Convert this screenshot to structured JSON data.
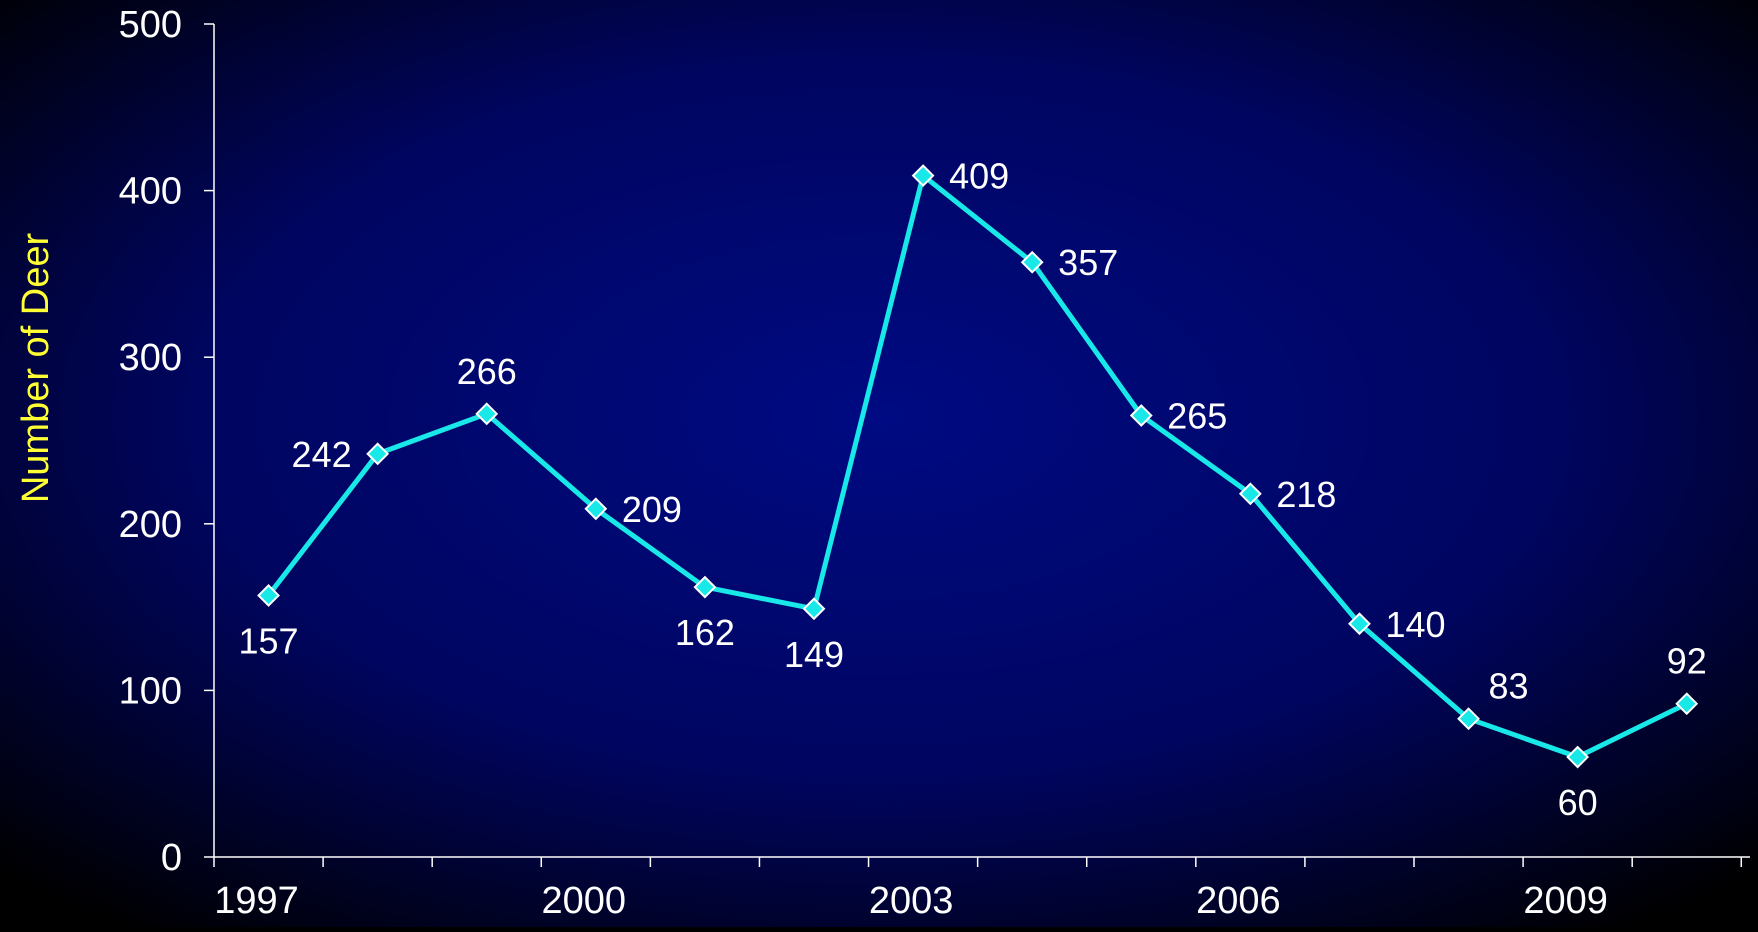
{
  "chart_data": {
    "type": "line",
    "title": "",
    "xlabel": "",
    "ylabel": "Number of Deer",
    "x": [
      1997,
      1998,
      1999,
      2000,
      2001,
      2002,
      2003,
      2004,
      2005,
      2006,
      2007,
      2008,
      2009,
      2010
    ],
    "x_tick_labels": [
      "1997",
      "2000",
      "2003",
      "2006",
      "2009"
    ],
    "series": [
      {
        "values": [
          157,
          242,
          266,
          209,
          162,
          149,
          409,
          357,
          265,
          218,
          140,
          83,
          60,
          92
        ]
      }
    ],
    "data_labels": [
      "157",
      "242",
      "266",
      "209",
      "162",
      "149",
      "409",
      "357",
      "265",
      "218",
      "140",
      "83",
      "60",
      "92"
    ],
    "ylim": [
      0,
      500
    ],
    "y_ticks": [
      0,
      100,
      200,
      300,
      400,
      500
    ],
    "y_tick_labels": [
      "0",
      "100",
      "200",
      "300",
      "400",
      "500"
    ],
    "grid": false,
    "legend": "none"
  },
  "colors": {
    "background_outer": "#000000",
    "background_center": "#000a82",
    "line": "#18e8e8",
    "marker_fill": "#18e8e8",
    "marker_stroke": "#ffffff",
    "axis": "#ffffff",
    "tick_text": "#ffffff",
    "data_label_text": "#ffffff",
    "ylabel_text": "#ffff33"
  }
}
